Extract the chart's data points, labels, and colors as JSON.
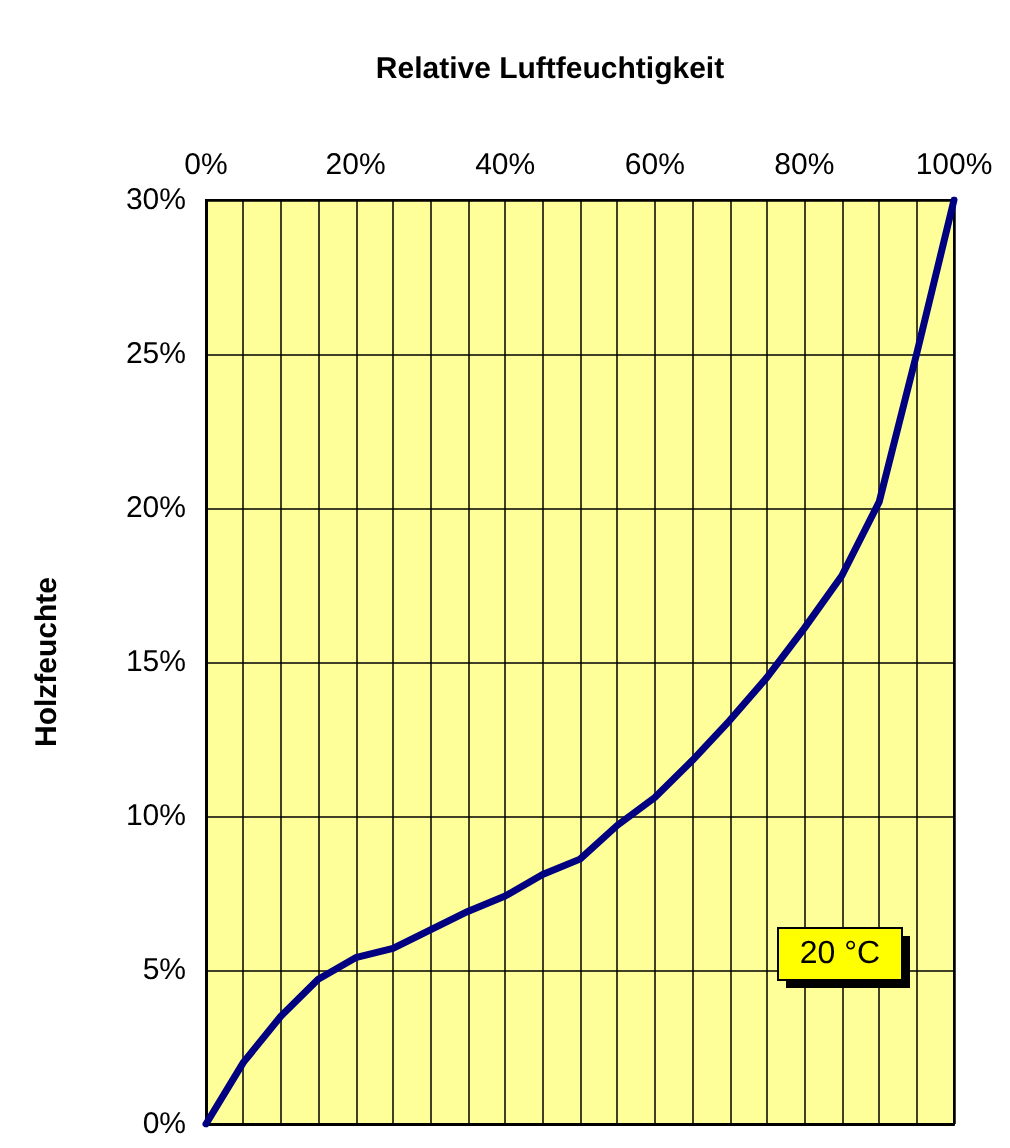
{
  "chart_data": {
    "type": "line",
    "title": "Relative Luftfeuchtigkeit",
    "ylabel": "Holzfeuchte",
    "x": [
      0,
      5,
      10,
      15,
      20,
      25,
      30,
      35,
      40,
      45,
      50,
      55,
      60,
      65,
      70,
      75,
      80,
      85,
      90,
      95,
      100
    ],
    "series": [
      {
        "color": "#000080",
        "values": [
          0,
          2.0,
          3.5,
          4.7,
          5.4,
          5.7,
          6.3,
          6.9,
          7.4,
          8.1,
          8.6,
          9.7,
          10.6,
          11.8,
          13.1,
          14.5,
          16.1,
          17.8,
          20.2,
          25.0,
          30
        ]
      }
    ],
    "xlim": [
      0,
      100
    ],
    "xticks": [
      {
        "value": 0,
        "label": "0%"
      },
      {
        "value": 5,
        "label": null
      },
      {
        "value": 10,
        "label": null
      },
      {
        "value": 15,
        "label": null
      },
      {
        "value": 20,
        "label": "20%"
      },
      {
        "value": 25,
        "label": null
      },
      {
        "value": 30,
        "label": null
      },
      {
        "value": 35,
        "label": null
      },
      {
        "value": 40,
        "label": "40%"
      },
      {
        "value": 45,
        "label": null
      },
      {
        "value": 50,
        "label": null
      },
      {
        "value": 55,
        "label": null
      },
      {
        "value": 60,
        "label": "60%"
      },
      {
        "value": 65,
        "label": null
      },
      {
        "value": 70,
        "label": null
      },
      {
        "value": 75,
        "label": null
      },
      {
        "value": 80,
        "label": "80%"
      },
      {
        "value": 85,
        "label": null
      },
      {
        "value": 90,
        "label": null
      },
      {
        "value": 95,
        "label": null
      },
      {
        "value": 100,
        "label": "100%"
      }
    ],
    "ylim": [
      0,
      30
    ],
    "yticks": [
      {
        "value": 0,
        "label": "0%"
      },
      {
        "value": 5,
        "label": "5%"
      },
      {
        "value": 10,
        "label": "10%"
      },
      {
        "value": 15,
        "label": "15%"
      },
      {
        "value": 20,
        "label": "20%"
      },
      {
        "value": 25,
        "label": "25%"
      },
      {
        "value": 30,
        "label": "30%"
      }
    ],
    "annotations": [
      "20 °C"
    ],
    "grid": true,
    "marker": "none",
    "line_style": "solid"
  }
}
